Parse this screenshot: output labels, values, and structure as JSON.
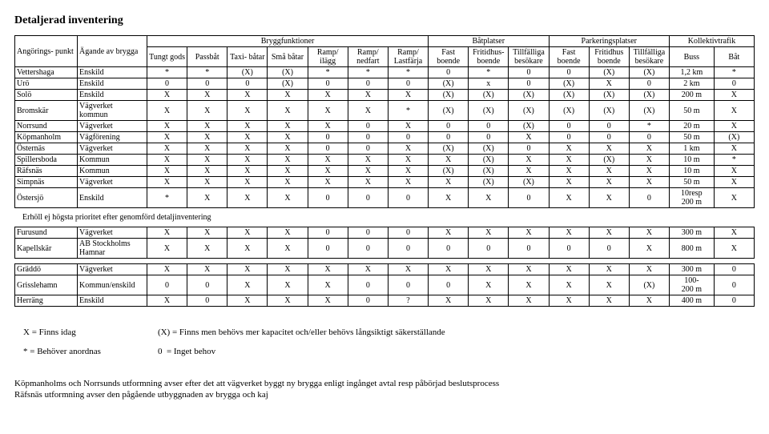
{
  "title": "Detaljerad inventering",
  "header_groups": {
    "brygg": "Bryggfunktioner",
    "bat": "Båtplatser",
    "park": "Parkeringsplatser",
    "koll": "Kollektivtrafik"
  },
  "columns": {
    "angoring": "Angörings-\npunkt",
    "agande": "Ägande av\nbrygga",
    "tungt": "Tungt\ngods",
    "passbat": "Passbåt",
    "taxi": "Taxi-\nbåtar",
    "sma": "Små\nbåtar",
    "ilagg": "Ramp/\nilägg",
    "nedfart": "Ramp/\nnedfart",
    "lastfarja": "Ramp/\nLastfärja",
    "fastb": "Fast\nboende",
    "fritidsb": "Fritidhus-\nboende",
    "tillf_besb": "Tillfälliga\nbesökare",
    "fastp": "Fast\nboende",
    "fritidsp": "Fritidhus\nboende",
    "tillf_besp": "Tillfälliga\nbesökare",
    "buss": "Buss",
    "bat": "Båt"
  },
  "rows_main": [
    [
      "Vettershaga",
      "Enskild",
      "*",
      "*",
      "(X)",
      "(X)",
      "*",
      "*",
      "*",
      "0",
      "*",
      "0",
      "0",
      "(X)",
      "(X)",
      "1,2 km",
      "*"
    ],
    [
      "Urö",
      "Enskild",
      "0",
      "0",
      "0",
      "(X)",
      "0",
      "0",
      "0",
      "(X)",
      "x",
      "0",
      "(X)",
      "X",
      "0",
      "2 km",
      "0"
    ],
    [
      "Solö",
      "Enskild",
      "X",
      "X",
      "X",
      "X",
      "X",
      "X",
      "X",
      "(X)",
      "(X)",
      "(X)",
      "(X)",
      "(X)",
      "(X)",
      "200 m",
      "X"
    ],
    [
      "Bromskär",
      "Vägverket\nkommun",
      "X",
      "X",
      "X",
      "X",
      "X",
      "X",
      "*",
      "(X)",
      "(X)",
      "(X)",
      "(X)",
      "(X)",
      "(X)",
      "50 m",
      "X"
    ],
    [
      "Norrsund",
      "Vägverket",
      "X",
      "X",
      "X",
      "X",
      "X",
      "0",
      "X",
      "0",
      "0",
      "(X)",
      "0",
      "0",
      "*",
      "20 m",
      "X"
    ],
    [
      "Köpmanholm",
      "Vägförening",
      "X",
      "X",
      "X",
      "X",
      "0",
      "0",
      "0",
      "0",
      "0",
      "X",
      "0",
      "0",
      "0",
      "50 m",
      "(X)"
    ],
    [
      "Östernäs",
      "Vägverket",
      "X",
      "X",
      "X",
      "X",
      "0",
      "0",
      "X",
      "(X)",
      "(X)",
      "0",
      "X",
      "X",
      "X",
      "1 km",
      "X"
    ],
    [
      "Spillersboda",
      "Kommun",
      "X",
      "X",
      "X",
      "X",
      "X",
      "X",
      "X",
      "X",
      "(X)",
      "X",
      "X",
      "(X)",
      "X",
      "10 m",
      "*"
    ],
    [
      "Räfsnäs",
      "Kommun",
      "X",
      "X",
      "X",
      "X",
      "X",
      "X",
      "X",
      "(X)",
      "(X)",
      "X",
      "X",
      "X",
      "X",
      "10 m",
      "X"
    ],
    [
      "Simpnäs",
      "Vägverket",
      "X",
      "X",
      "X",
      "X",
      "X",
      "X",
      "X",
      "X",
      "(X)",
      "(X)",
      "X",
      "X",
      "X",
      "50 m",
      "X"
    ],
    [
      "Östersjö",
      "Enskild",
      "*",
      "X",
      "X",
      "X",
      "0",
      "0",
      "0",
      "X",
      "X",
      "0",
      "X",
      "X",
      "0",
      "10resp\n200 m",
      "X"
    ]
  ],
  "section_note": "Erhöll ej högsta prioritet efter genomförd detaljinventering",
  "rows_sec1": [
    [
      "Furusund",
      "Vägverket",
      "X",
      "X",
      "X",
      "X",
      "0",
      "0",
      "0",
      "X",
      "X",
      "X",
      "X",
      "X",
      "X",
      "300 m",
      "X"
    ],
    [
      "Kapellskär",
      "AB Stockholms\nHamnar",
      "X",
      "X",
      "X",
      "X",
      "0",
      "0",
      "0",
      "0",
      "0",
      "0",
      "0",
      "0",
      "X",
      "800 m",
      "X"
    ]
  ],
  "rows_sec2": [
    [
      "Gräddö",
      "Vägverket",
      "X",
      "X",
      "X",
      "X",
      "X",
      "X",
      "X",
      "X",
      "X",
      "X",
      "X",
      "X",
      "X",
      "300 m",
      "0"
    ],
    [
      "Grisslehamn",
      "Kommun/enskild",
      "0",
      "0",
      "X",
      "X",
      "X",
      "0",
      "0",
      "0",
      "X",
      "X",
      "X",
      "X",
      "(X)",
      "100-\n200 m",
      "0"
    ],
    [
      "Herräng",
      "Enskild",
      "X",
      "0",
      "X",
      "X",
      "X",
      "0",
      "?",
      "X",
      "X",
      "X",
      "X",
      "X",
      "X",
      "400 m",
      "0"
    ]
  ],
  "legend": {
    "x": "X = Finns idag",
    "star": "* = Behöver anordnas",
    "paren": "(X) = Finns men behövs mer kapacitet och/eller behövs långsiktigt säkerställande",
    "zero": "0  = Inget behov"
  },
  "footnotes": [
    "Köpmanholms och Norrsunds utformning avser efter det att vägverket byggt ny brygga enligt ingånget avtal resp påbörjad beslutsprocess",
    "Räfsnäs utformning avser den pågående utbyggnaden av brygga och kaj"
  ]
}
